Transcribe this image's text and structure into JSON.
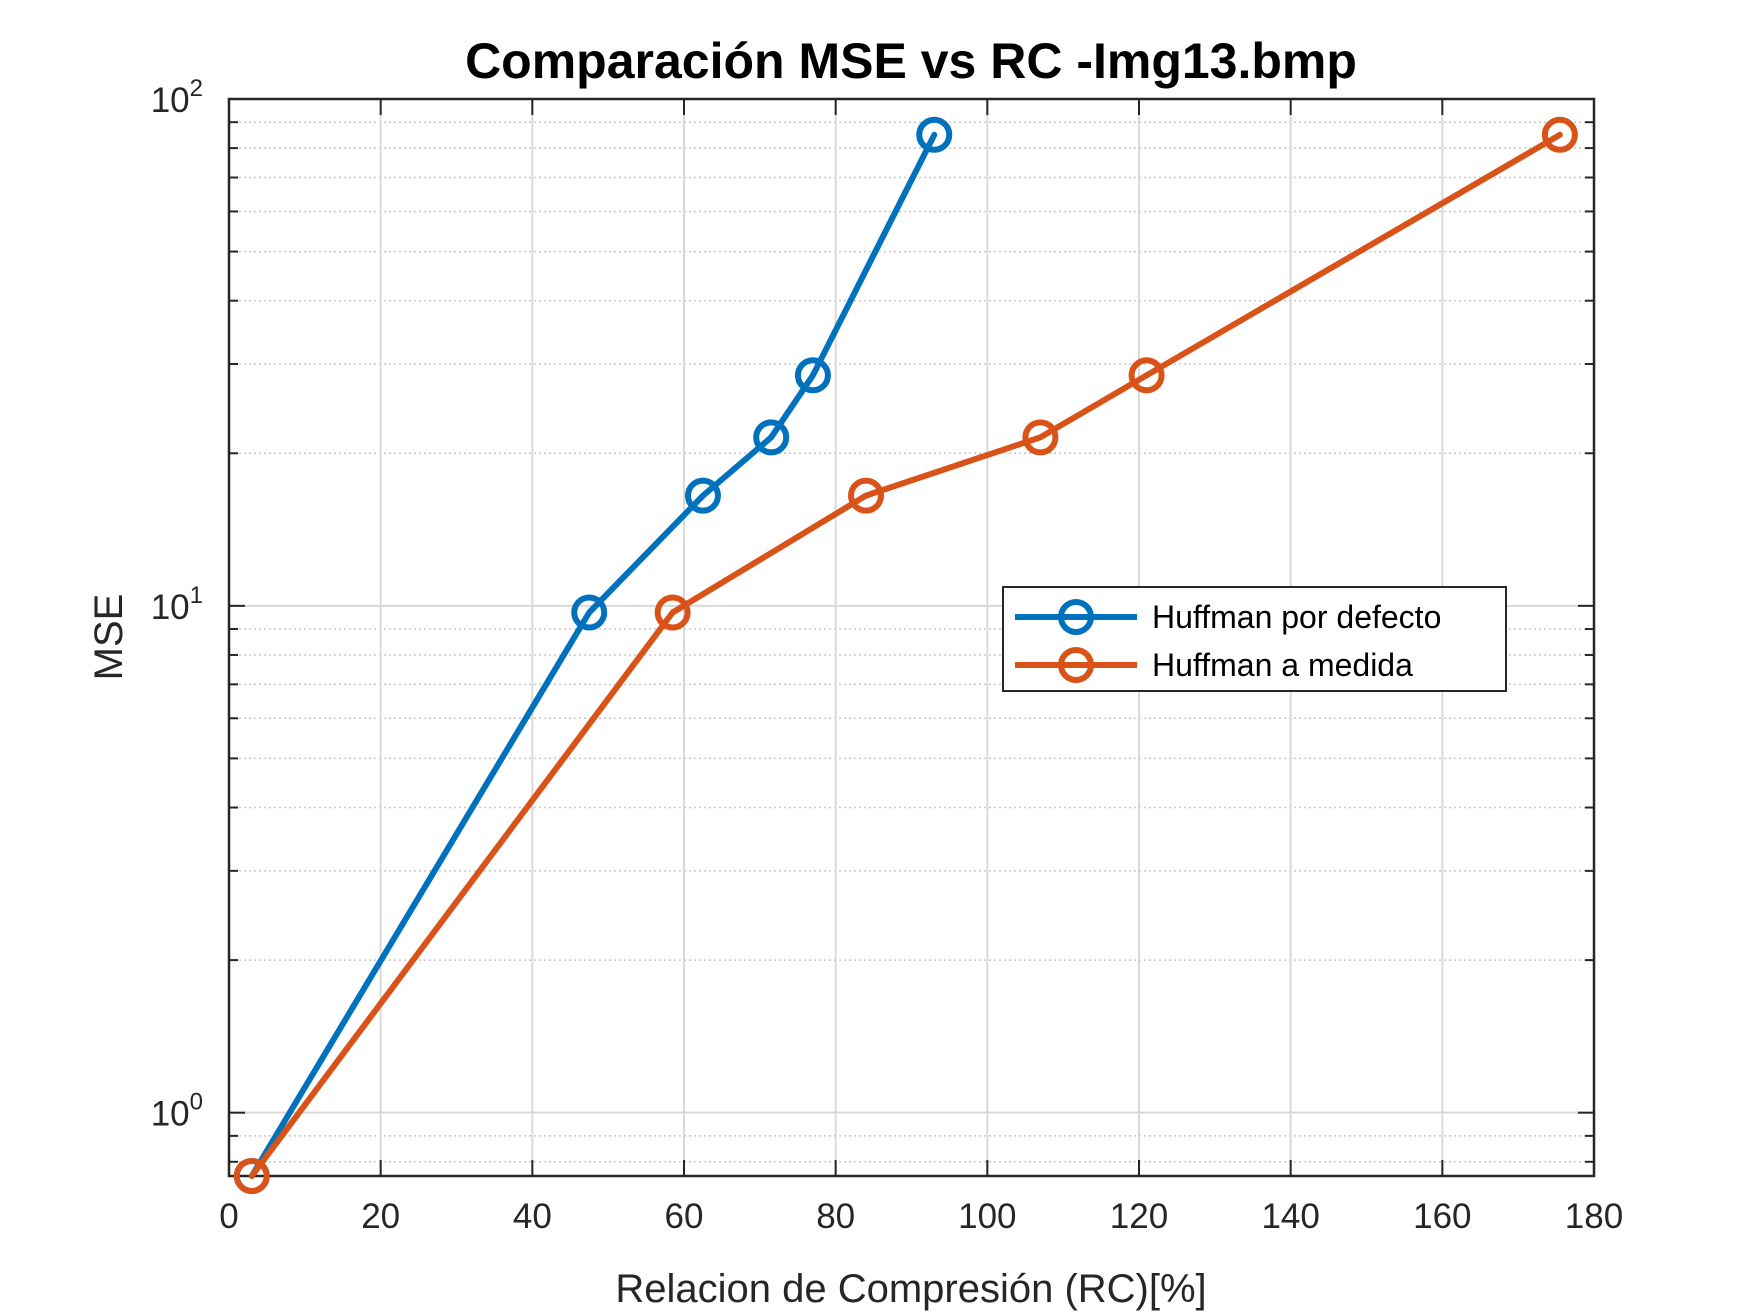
{
  "chart_data": {
    "type": "line",
    "title": "Comparación MSE vs RC -Img13.bmp",
    "xlabel": "Relacion de Compresión (RC)[%]",
    "ylabel": "MSE",
    "xlim": [
      0,
      180
    ],
    "ylim": [
      0.75,
      100
    ],
    "yscale": "log",
    "grid": true,
    "legend_position": "right",
    "x_ticks": [
      0,
      20,
      40,
      60,
      80,
      100,
      120,
      140,
      160,
      180
    ],
    "y_ticks": [
      {
        "value": 1,
        "base": "10",
        "exponent": "0"
      },
      {
        "value": 10,
        "base": "10",
        "exponent": "1"
      },
      {
        "value": 100,
        "base": "10",
        "exponent": "2"
      }
    ],
    "series": [
      {
        "name": "Huffman por defecto",
        "color": "#0072BD",
        "marker": "circle",
        "x": [
          3,
          47.5,
          62.5,
          71.5,
          77,
          93
        ],
        "y": [
          0.75,
          9.7,
          16.5,
          21.5,
          28.5,
          85
        ]
      },
      {
        "name": "Huffman a medida",
        "color": "#D95319",
        "marker": "circle",
        "x": [
          3,
          58.5,
          84,
          107,
          121,
          175.5
        ],
        "y": [
          0.75,
          9.7,
          16.5,
          21.5,
          28.5,
          85
        ]
      }
    ]
  }
}
